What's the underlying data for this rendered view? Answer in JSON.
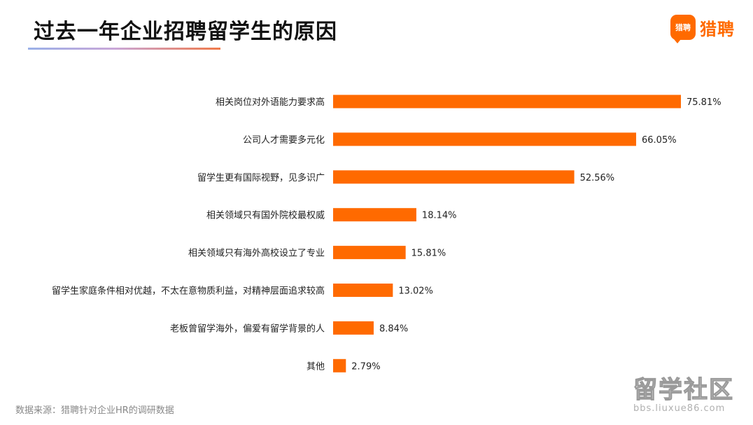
{
  "header": {
    "title": "过去一年企业招聘留学生的原因",
    "logo_mark": "猎聘",
    "logo_text": "猎聘"
  },
  "colors": {
    "bar": "#ff6a00",
    "brand": "#ff6a00"
  },
  "chart_data": {
    "type": "bar",
    "orientation": "horizontal",
    "categories": [
      "相关岗位对外语能力要求高",
      "公司人才需要多元化",
      "留学生更有国际视野，见多识广",
      "相关领域只有国外院校最权威",
      "相关领域只有海外高校设立了专业",
      "留学生家庭条件相对优越，不太在意物质利益，对精神层面追求较高",
      "老板曾留学海外，偏爱有留学背景的人",
      "其他"
    ],
    "values": [
      75.81,
      66.05,
      52.56,
      18.14,
      15.81,
      13.02,
      8.84,
      2.79
    ],
    "value_labels": [
      "75.81%",
      "66.05%",
      "52.56%",
      "18.14%",
      "15.81%",
      "13.02%",
      "8.84%",
      "2.79%"
    ],
    "unit": "%",
    "title": "过去一年企业招聘留学生的原因",
    "xlabel": "",
    "ylabel": "",
    "xlim": [
      0,
      75.81
    ],
    "grid": false,
    "legend": "none"
  },
  "footer": {
    "source": "数据来源：猎聘针对企业HR的调研数据"
  },
  "watermark": {
    "main": "留学社区",
    "sub": "bbs.liuxue86.com"
  }
}
